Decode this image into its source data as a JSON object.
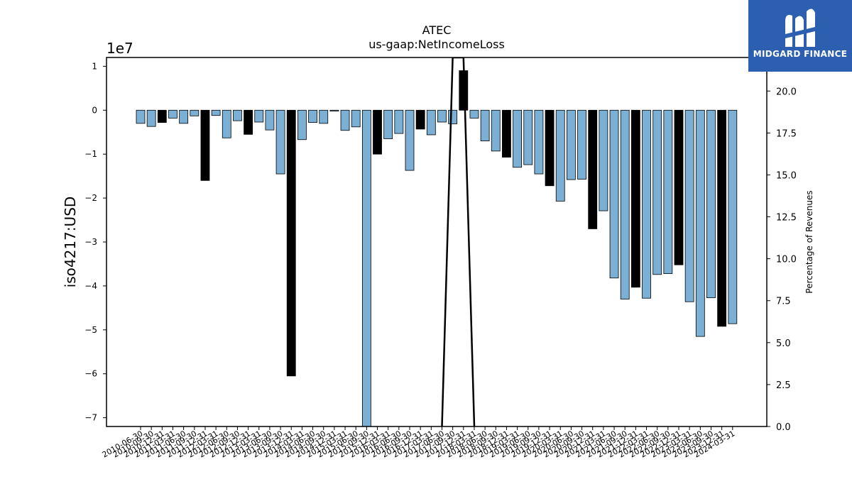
{
  "logo": {
    "text": "MIDGARD FINANCE",
    "icon": "midgard-m-logo-icon"
  },
  "chart_data": {
    "type": "bar",
    "title": "ATEC",
    "subtitle": "us-gaap:NetIncomeLoss",
    "ylabel": "iso4217:USD",
    "y_offset_label": "1e7",
    "ylabel_right": "Percentage of Revenues",
    "ylim": [
      -72000000,
      12000000
    ],
    "ylim_right": [
      0.0,
      22.0
    ],
    "yticks": [
      1,
      0,
      -1,
      -2,
      -3,
      -4,
      -5,
      -6,
      -7
    ],
    "yticks_right": [
      "0.0",
      "2.5",
      "5.0",
      "7.5",
      "10.0",
      "12.5",
      "15.0",
      "17.5",
      "20.0"
    ],
    "categories": [
      "2010-06-30",
      "2010-09-30",
      "2010-12-31",
      "2011-03-31",
      "2011-06-30",
      "2011-09-30",
      "2011-12-31",
      "2012-03-31",
      "2012-06-30",
      "2012-09-30",
      "2012-12-31",
      "2013-03-31",
      "2013-06-30",
      "2013-09-30",
      "2013-12-31",
      "2014-03-31",
      "2014-06-30",
      "2014-09-30",
      "2014-12-31",
      "2015-03-31",
      "2015-06-30",
      "2015-09-30",
      "2015-12-31",
      "2016-03-31",
      "2016-06-30",
      "2016-09-30",
      "2016-12-31",
      "2017-03-31",
      "2017-06-30",
      "2017-09-30",
      "2017-12-31",
      "2018-03-31",
      "2018-06-30",
      "2018-09-30",
      "2018-12-31",
      "2019-03-31",
      "2019-06-30",
      "2019-09-30",
      "2019-12-31",
      "2020-03-31",
      "2020-06-30",
      "2020-09-30",
      "2020-12-31",
      "2021-03-31",
      "2021-06-30",
      "2021-09-30",
      "2021-12-31",
      "2022-03-31",
      "2022-06-30",
      "2022-09-30",
      "2022-12-31",
      "2023-03-31",
      "2023-06-30",
      "2023-09-30",
      "2023-12-31",
      "2024-03-31"
    ],
    "values": [
      -3000000,
      -3700000,
      -2800000,
      -1800000,
      -3000000,
      -1300000,
      -16000000,
      -1200000,
      -6300000,
      -2400000,
      -5500000,
      -2700000,
      -4500000,
      -14500000,
      -60500000,
      -6700000,
      -2800000,
      -3000000,
      -200000,
      -4600000,
      -3800000,
      -72000000,
      -10000000,
      -6500000,
      -5300000,
      -13700000,
      -4300000,
      -5600000,
      -2700000,
      -3100000,
      9000000,
      -1800000,
      -7000000,
      -9300000,
      -10700000,
      -13000000,
      -12400000,
      -14500000,
      -17200000,
      -20700000,
      -15800000,
      -15700000,
      -27000000,
      -22900000,
      -38200000,
      -43000000,
      -40300000,
      -42800000,
      -37400000,
      -37200000,
      -35200000,
      -43600000,
      -51500000,
      -42700000,
      -49200000,
      -48600000
    ],
    "highlight_indices": [
      2,
      6,
      10,
      14,
      22,
      26,
      30,
      34,
      38,
      42,
      46,
      50,
      54
    ],
    "ratio_line": {
      "points": [
        [
          28,
          0.0
        ],
        [
          29,
          22.0
        ],
        [
          30,
          22.0
        ],
        [
          31,
          0.0
        ]
      ]
    },
    "colors": {
      "bar": "#7bafd4",
      "highlight": "#000000",
      "edge": "#000000"
    },
    "legend": "none",
    "grid": false
  }
}
